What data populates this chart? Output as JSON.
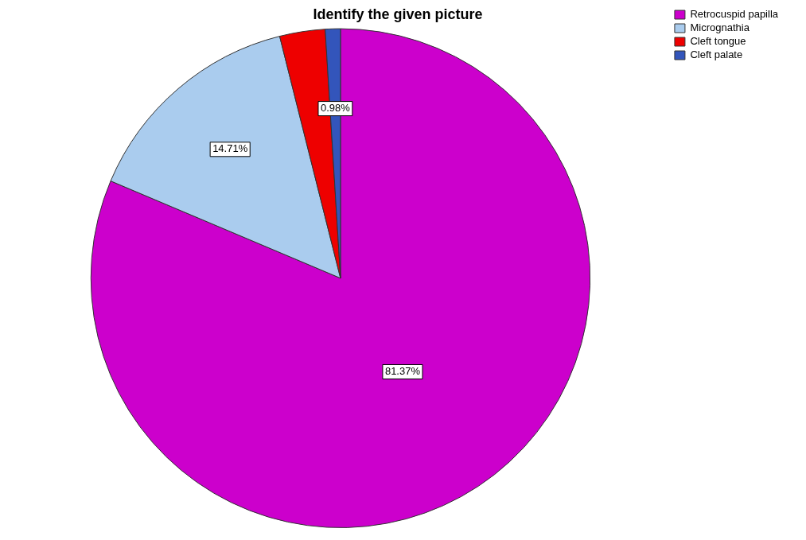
{
  "chart_data": {
    "type": "pie",
    "title": "Identify the given picture",
    "categories": [
      "Retrocuspid papilla",
      "Micrognathia",
      "Cleft tongue",
      "Cleft palate"
    ],
    "values": [
      81.37,
      14.71,
      2.94,
      0.98
    ],
    "colors": [
      "#cc00cc",
      "#aaccee",
      "#ee0000",
      "#3355bb"
    ],
    "value_labels": [
      "81.37%",
      "14.71%",
      null,
      "0.98%"
    ],
    "legend": "top right"
  }
}
